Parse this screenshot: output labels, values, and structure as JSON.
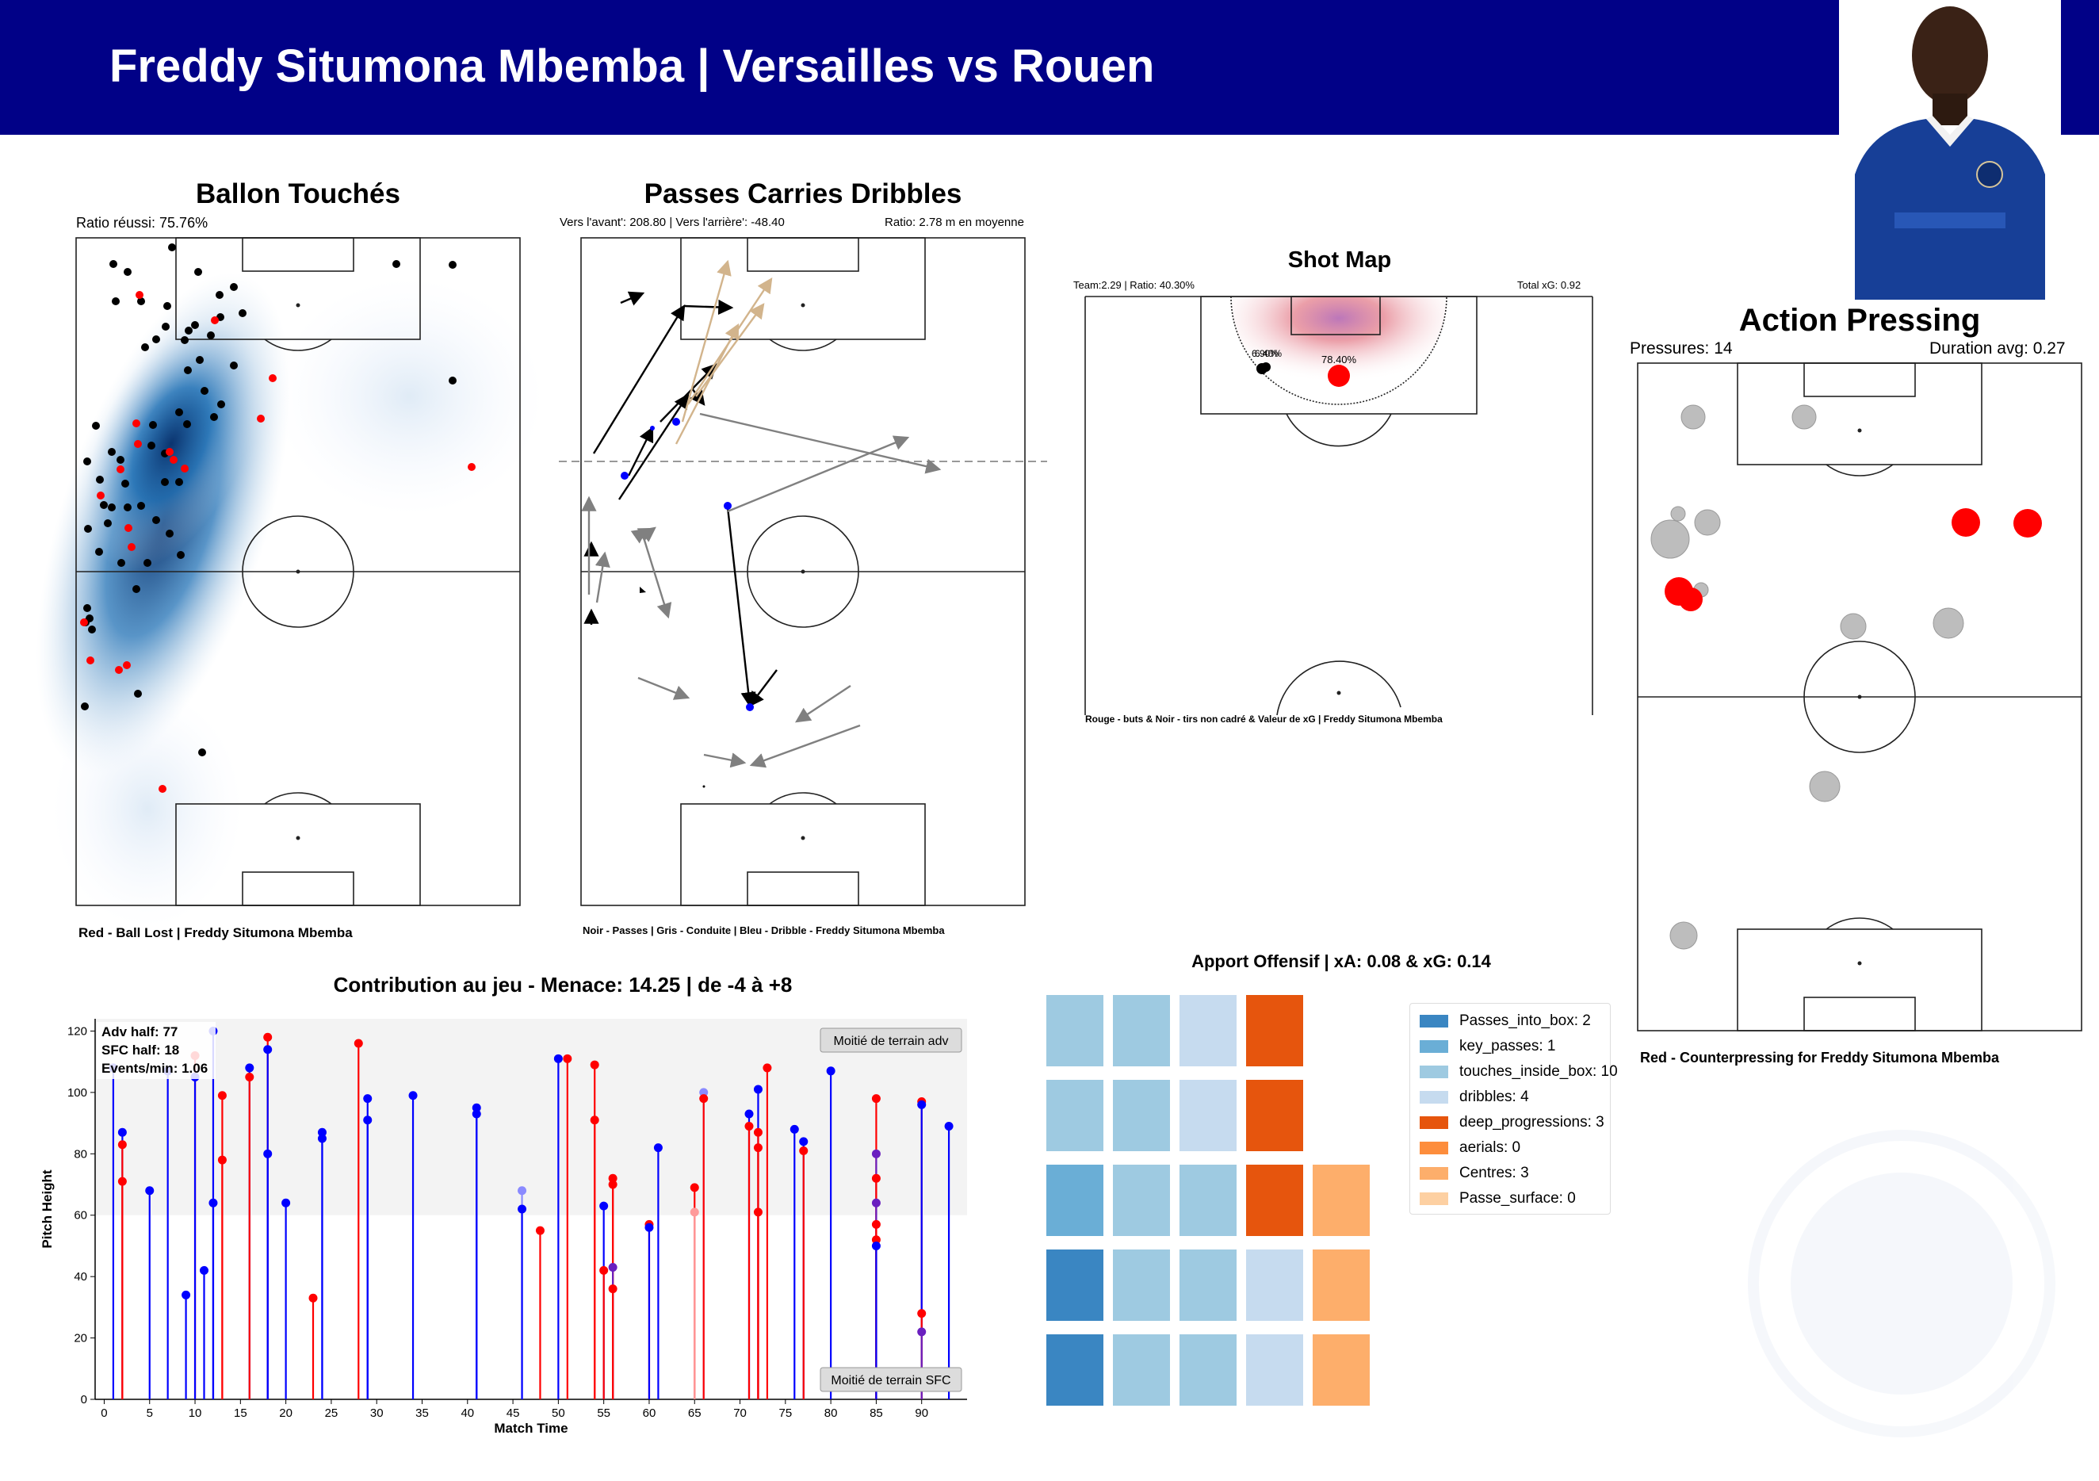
{
  "header": {
    "title": "Freddy Situmona Mbemba | Versailles vs Rouen"
  },
  "colors": {
    "header_bg": "#010187",
    "accent_red": "#ff0000",
    "pass_black": "#000000",
    "carry_grey": "#808080",
    "dribble_blue": "#0000ff"
  },
  "touches": {
    "title": "Ballon Touchés",
    "ratio": "Ratio réussi: 75.76%",
    "caption": "Red - Ball Lost | Freddy Situmona Mbemba"
  },
  "passes": {
    "title": "Passes Carries Dribbles",
    "forward_back": "Vers l'avant': 208.80 | Vers l'arrière': -48.40",
    "ratio": "Ratio: 2.78 m en moyenne",
    "caption": "Noir - Passes | Gris - Conduite | Bleu - Dribble - Freddy Situmona Mbemba"
  },
  "shots": {
    "title": "Shot Map",
    "team": "Team:2.29 | Ratio: 40.30%",
    "total_xg": "Total xG: 0.92",
    "shot_labels": [
      "6.90%",
      "6.40%",
      "78.40%"
    ],
    "caption": "Rouge - buts & Noir - tirs non cadré & Valeur de xG | Freddy Situmona Mbemba"
  },
  "pressing": {
    "title": "Action Pressing",
    "pressures": "Pressures: 14",
    "duration": "Duration avg: 0.27",
    "caption": "Red - Counterpressing for Freddy Situmona Mbemba"
  },
  "offensive": {
    "title": "Apport Offensif | xA: 0.08 & xG: 0.14",
    "legend": [
      {
        "label": "Passes_into_box: 2",
        "color": "#3a86c2"
      },
      {
        "label": "key_passes: 1",
        "color": "#6aaed6"
      },
      {
        "label": "touches_inside_box: 10",
        "color": "#9ecae1"
      },
      {
        "label": "dribbles: 4",
        "color": "#c6dbef"
      },
      {
        "label": "deep_progressions: 3",
        "color": "#e6550d"
      },
      {
        "label": "aerials: 0",
        "color": "#fd8d3c"
      },
      {
        "label": "Centres: 3",
        "color": "#fdae6b"
      },
      {
        "label": "Passe_surface: 0",
        "color": "#fdd0a2"
      }
    ],
    "grid_rows": [
      [
        "#9ecae1",
        "#9ecae1",
        "#c6dbef",
        "#e6550d",
        ""
      ],
      [
        "#9ecae1",
        "#9ecae1",
        "#c6dbef",
        "#e6550d",
        ""
      ],
      [
        "#6aaed6",
        "#9ecae1",
        "#9ecae1",
        "#e6550d",
        "#fdae6b"
      ],
      [
        "#3a86c2",
        "#9ecae1",
        "#9ecae1",
        "#c6dbef",
        "#fdae6b"
      ],
      [
        "#3a86c2",
        "#9ecae1",
        "#9ecae1",
        "#c6dbef",
        "#fdae6b"
      ]
    ]
  },
  "chart_data": {
    "type": "scatter",
    "title": "Contribution au jeu - Menace: 14.25 | de -4 à +8",
    "xlabel": "Match Time",
    "ylabel": "Pitch Height",
    "xlim": [
      -1,
      95
    ],
    "ylim": [
      0,
      124
    ],
    "x_ticks": [
      0,
      5,
      10,
      15,
      20,
      25,
      30,
      35,
      40,
      45,
      50,
      55,
      60,
      65,
      70,
      75,
      80,
      85,
      90
    ],
    "y_ticks": [
      0,
      20,
      40,
      60,
      80,
      100,
      120
    ],
    "stats": [
      "Adv half: 77",
      "SFC half: 18",
      "Events/min: 1.06"
    ],
    "zone_labels": {
      "adv": "Moitié de terrain adv",
      "sfc": "Moitié de terrain SFC"
    },
    "adv_half_threshold": 60,
    "points": [
      {
        "x": 1,
        "y": 108,
        "c": "blue"
      },
      {
        "x": 2,
        "y": 87,
        "c": "blue"
      },
      {
        "x": 2,
        "y": 83,
        "c": "red"
      },
      {
        "x": 2,
        "y": 71,
        "c": "red"
      },
      {
        "x": 5,
        "y": 68,
        "c": "blue"
      },
      {
        "x": 7,
        "y": 107,
        "c": "blue"
      },
      {
        "x": 9,
        "y": 34,
        "c": "blue"
      },
      {
        "x": 10,
        "y": 112,
        "c": "red"
      },
      {
        "x": 10,
        "y": 105,
        "c": "blue"
      },
      {
        "x": 11,
        "y": 42,
        "c": "blue"
      },
      {
        "x": 12,
        "y": 120,
        "c": "blue"
      },
      {
        "x": 12,
        "y": 64,
        "c": "blue"
      },
      {
        "x": 13,
        "y": 99,
        "c": "red"
      },
      {
        "x": 13,
        "y": 78,
        "c": "red"
      },
      {
        "x": 16,
        "y": 108,
        "c": "blue"
      },
      {
        "x": 16,
        "y": 105,
        "c": "red"
      },
      {
        "x": 18,
        "y": 118,
        "c": "red"
      },
      {
        "x": 18,
        "y": 114,
        "c": "blue"
      },
      {
        "x": 18,
        "y": 80,
        "c": "blue"
      },
      {
        "x": 20,
        "y": 64,
        "c": "blue"
      },
      {
        "x": 23,
        "y": 33,
        "c": "red"
      },
      {
        "x": 24,
        "y": 87,
        "c": "blue"
      },
      {
        "x": 24,
        "y": 85,
        "c": "blue"
      },
      {
        "x": 28,
        "y": 116,
        "c": "red"
      },
      {
        "x": 29,
        "y": 98,
        "c": "blue"
      },
      {
        "x": 29,
        "y": 91,
        "c": "blue"
      },
      {
        "x": 34,
        "y": 99,
        "c": "blue"
      },
      {
        "x": 41,
        "y": 95,
        "c": "blue"
      },
      {
        "x": 41,
        "y": 93,
        "c": "blue"
      },
      {
        "x": 46,
        "y": 68,
        "c": "lightblue"
      },
      {
        "x": 46,
        "y": 62,
        "c": "blue"
      },
      {
        "x": 48,
        "y": 55,
        "c": "red"
      },
      {
        "x": 50,
        "y": 111,
        "c": "blue"
      },
      {
        "x": 51,
        "y": 111,
        "c": "red"
      },
      {
        "x": 54,
        "y": 109,
        "c": "red"
      },
      {
        "x": 54,
        "y": 91,
        "c": "red"
      },
      {
        "x": 55,
        "y": 63,
        "c": "blue"
      },
      {
        "x": 55,
        "y": 42,
        "c": "red"
      },
      {
        "x": 56,
        "y": 72,
        "c": "red"
      },
      {
        "x": 56,
        "y": 70,
        "c": "red"
      },
      {
        "x": 56,
        "y": 43,
        "c": "purple"
      },
      {
        "x": 56,
        "y": 36,
        "c": "red"
      },
      {
        "x": 60,
        "y": 57,
        "c": "red"
      },
      {
        "x": 60,
        "y": 56,
        "c": "blue"
      },
      {
        "x": 61,
        "y": 82,
        "c": "blue"
      },
      {
        "x": 65,
        "y": 69,
        "c": "red"
      },
      {
        "x": 65,
        "y": 61,
        "c": "lightred"
      },
      {
        "x": 66,
        "y": 100,
        "c": "lightblue"
      },
      {
        "x": 66,
        "y": 98,
        "c": "red"
      },
      {
        "x": 71,
        "y": 93,
        "c": "blue"
      },
      {
        "x": 71,
        "y": 89,
        "c": "red"
      },
      {
        "x": 72,
        "y": 101,
        "c": "blue"
      },
      {
        "x": 72,
        "y": 87,
        "c": "red"
      },
      {
        "x": 72,
        "y": 82,
        "c": "red"
      },
      {
        "x": 72,
        "y": 61,
        "c": "red"
      },
      {
        "x": 73,
        "y": 108,
        "c": "red"
      },
      {
        "x": 76,
        "y": 88,
        "c": "blue"
      },
      {
        "x": 77,
        "y": 84,
        "c": "blue"
      },
      {
        "x": 77,
        "y": 81,
        "c": "red"
      },
      {
        "x": 80,
        "y": 107,
        "c": "blue"
      },
      {
        "x": 85,
        "y": 98,
        "c": "red"
      },
      {
        "x": 85,
        "y": 80,
        "c": "purple"
      },
      {
        "x": 85,
        "y": 72,
        "c": "red"
      },
      {
        "x": 85,
        "y": 64,
        "c": "purple"
      },
      {
        "x": 85,
        "y": 57,
        "c": "red"
      },
      {
        "x": 85,
        "y": 52,
        "c": "red"
      },
      {
        "x": 85,
        "y": 50,
        "c": "blue"
      },
      {
        "x": 90,
        "y": 97,
        "c": "red"
      },
      {
        "x": 90,
        "y": 96,
        "c": "blue"
      },
      {
        "x": 90,
        "y": 28,
        "c": "red"
      },
      {
        "x": 90,
        "y": 22,
        "c": "purple"
      },
      {
        "x": 93,
        "y": 89,
        "c": "blue"
      }
    ]
  }
}
